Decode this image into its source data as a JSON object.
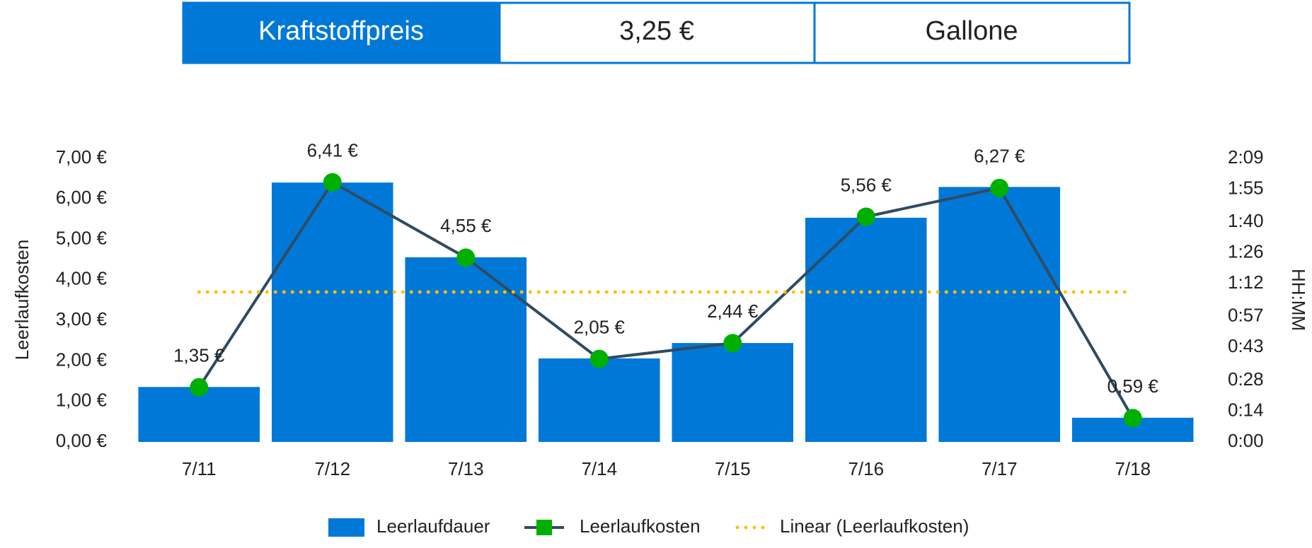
{
  "header": {
    "label": "Kraftstoffpreis",
    "price": "3,25 €",
    "unit": "Gallone"
  },
  "chart_data": {
    "type": "bar",
    "categories": [
      "7/11",
      "7/12",
      "7/13",
      "7/14",
      "7/15",
      "7/16",
      "7/17",
      "7/18"
    ],
    "y_label": "Leerlaufkosten",
    "y2_label": "HH:MM",
    "ylim": [
      0,
      7
    ],
    "yticks": [
      {
        "value": 0,
        "label": "0,00 €"
      },
      {
        "value": 1,
        "label": "1,00 €"
      },
      {
        "value": 2,
        "label": "2,00 €"
      },
      {
        "value": 3,
        "label": "3,00 €"
      },
      {
        "value": 4,
        "label": "4,00 €"
      },
      {
        "value": 5,
        "label": "5,00 €"
      },
      {
        "value": 6,
        "label": "6,00 €"
      },
      {
        "value": 7,
        "label": "7,00 €"
      }
    ],
    "y2lim": [
      0,
      129
    ],
    "y2ticks": [
      {
        "value": 0,
        "label": "0:00"
      },
      {
        "value": 14,
        "label": "0:14"
      },
      {
        "value": 28,
        "label": "0:28"
      },
      {
        "value": 43,
        "label": "0:43"
      },
      {
        "value": 57,
        "label": "0:57"
      },
      {
        "value": 72,
        "label": "1:12"
      },
      {
        "value": 86,
        "label": "1:26"
      },
      {
        "value": 100,
        "label": "1:40"
      },
      {
        "value": 115,
        "label": "1:55"
      },
      {
        "value": 129,
        "label": "2:09"
      }
    ],
    "series": [
      {
        "name": "Leerlaufdauer",
        "type": "bar",
        "axis": "y2",
        "color": "#0078d7",
        "values": [
          25,
          118,
          84,
          38,
          45,
          102,
          116,
          11
        ]
      },
      {
        "name": "Leerlaufkosten",
        "type": "line",
        "color": "#2f4b63",
        "marker_color": "#00b000",
        "values": [
          1.35,
          6.41,
          4.55,
          2.05,
          2.44,
          5.56,
          6.27,
          0.59
        ],
        "value_labels": [
          "1,35 €",
          "6,41 €",
          "4,55 €",
          "2,05 €",
          "2,44 €",
          "5,56 €",
          "6,27 €",
          "0,59 €"
        ]
      }
    ],
    "trendline": {
      "name": "Linear (Leerlaufkosten)",
      "color": "#ffc000",
      "values": [
        3.7,
        3.7
      ]
    }
  }
}
